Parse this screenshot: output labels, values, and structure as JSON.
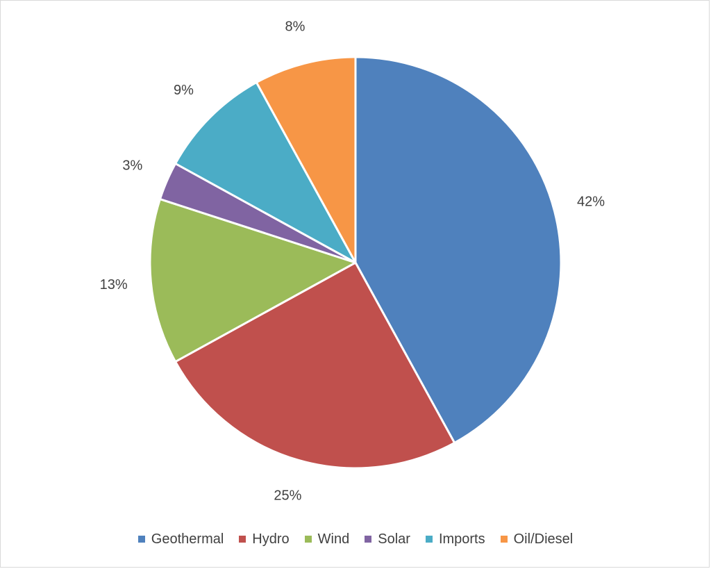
{
  "chart_data": {
    "type": "pie",
    "title": "",
    "legend_position": "bottom",
    "slices": [
      {
        "name": "Geothermal",
        "value": 42,
        "label": "42%",
        "color": "#4F81BD"
      },
      {
        "name": "Hydro",
        "value": 25,
        "label": "25%",
        "color": "#C0504D"
      },
      {
        "name": "Wind",
        "value": 13,
        "label": "13%",
        "color": "#9BBB59"
      },
      {
        "name": "Solar",
        "value": 3,
        "label": "3%",
        "color": "#8064A2"
      },
      {
        "name": "Imports",
        "value": 9,
        "label": "9%",
        "color": "#4BACC6"
      },
      {
        "name": "Oil/Diesel",
        "value": 8,
        "label": "8%",
        "color": "#F79646"
      }
    ]
  }
}
